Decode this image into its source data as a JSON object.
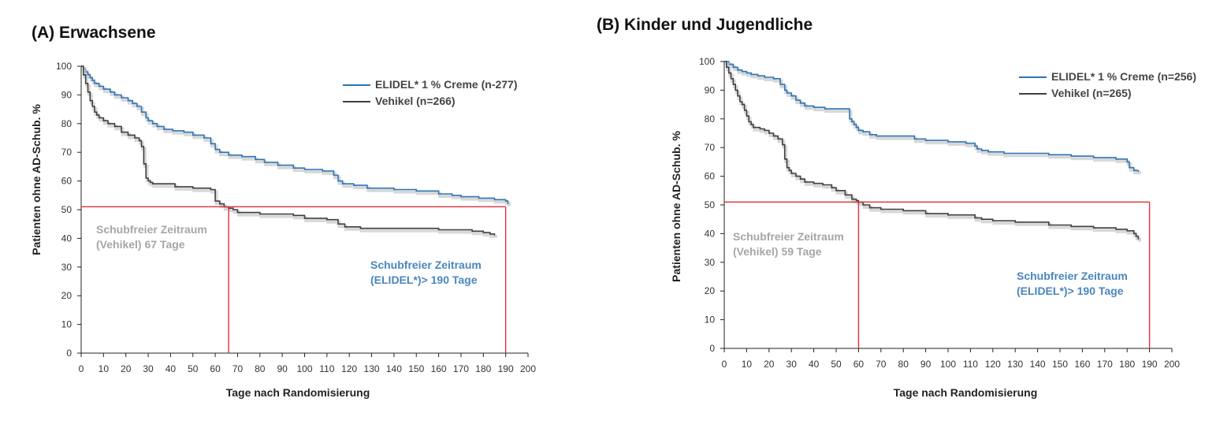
{
  "colors": {
    "elidel": "#2e74b5",
    "vehikel": "#3f3f3f",
    "reference": "#e0303a",
    "vehikel_label": "#a6a6a6",
    "elidel_label": "#4a86bd",
    "axis": "#222222"
  },
  "chart_data": [
    {
      "type": "line",
      "title": "(A) Erwachsene",
      "xlabel": "Tage nach Randomisierung",
      "ylabel": "Patienten ohne AD-Schub. %",
      "xlim": [
        0,
        200
      ],
      "ylim": [
        0,
        100
      ],
      "xticks": [
        "0",
        "10",
        "20",
        "30",
        "40",
        "50",
        "60",
        "70",
        "80",
        "90",
        "100",
        "110",
        "120",
        "130",
        "140",
        "150",
        "160",
        "170",
        "180",
        "190",
        "200"
      ],
      "yticks": [
        "0",
        "10",
        "20",
        "30",
        "40",
        "50",
        "60",
        "70",
        "80",
        "90",
        "100"
      ],
      "grid": false,
      "legend_position": "top-right",
      "series": [
        {
          "name": "ELIDEL* 1 % Creme (n-277)",
          "color_key": "elidel",
          "x": [
            0,
            1,
            2,
            3,
            4,
            5,
            6,
            8,
            10,
            13,
            15,
            18,
            21,
            23,
            25,
            27,
            29,
            30,
            32,
            34,
            37,
            41,
            46,
            50,
            55,
            58,
            60,
            62,
            66,
            72,
            78,
            82,
            88,
            95,
            100,
            108,
            113,
            115,
            117,
            122,
            128,
            140,
            150,
            160,
            166,
            170,
            178,
            185,
            190,
            191
          ],
          "y": [
            100,
            99,
            98,
            97,
            96,
            95,
            94,
            93,
            92,
            91,
            90,
            89,
            88,
            87,
            86,
            84,
            82,
            81,
            80,
            79,
            78,
            77.5,
            77,
            76,
            75,
            73,
            71,
            70,
            69,
            68.5,
            67.5,
            66.5,
            65.5,
            64.5,
            64,
            63.5,
            62,
            60,
            59,
            58.5,
            57.5,
            57,
            56.5,
            55.5,
            55,
            54.5,
            54,
            53.5,
            53,
            52
          ]
        },
        {
          "name": "Vehikel (n=266)",
          "color_key": "vehikel",
          "x": [
            0,
            1,
            2,
            3,
            4,
            5,
            6,
            7,
            8,
            10,
            12,
            15,
            18,
            21,
            24,
            26,
            27,
            28,
            29,
            30,
            31,
            32,
            35,
            42,
            50,
            58,
            60,
            62,
            64,
            66,
            68,
            70,
            80,
            95,
            100,
            110,
            115,
            118,
            125,
            140,
            160,
            175,
            180,
            183,
            185
          ],
          "y": [
            100,
            97,
            94,
            91,
            88,
            86,
            84,
            83,
            82,
            81,
            80,
            79,
            77,
            76,
            75,
            74,
            72,
            66,
            61,
            60,
            59.5,
            59,
            59,
            58,
            57.5,
            57,
            53,
            52,
            51,
            50.5,
            50,
            49,
            48.5,
            48,
            47,
            46.5,
            45,
            44,
            43.5,
            43.5,
            43,
            42.5,
            42,
            41.5,
            41
          ]
        }
      ],
      "reference_lines": {
        "y": 51,
        "x": [
          66,
          190
        ]
      },
      "annotations": [
        {
          "line1": "Schubfreier Zeitraum",
          "line2": "(Vehikel) 67 Tage",
          "color_key": "vehikel_label"
        },
        {
          "line1": "Schubfreier Zeitraum",
          "line2": "(ELIDEL*)> 190 Tage",
          "color_key": "elidel_label"
        }
      ]
    },
    {
      "type": "line",
      "title": "(B) Kinder und Jugendliche",
      "xlabel": "Tage nach Randomisierung",
      "ylabel": "Patienten ohne AD-Schub. %",
      "xlim": [
        0,
        200
      ],
      "ylim": [
        0,
        100
      ],
      "xticks": [
        "0",
        "10",
        "20",
        "30",
        "40",
        "50",
        "60",
        "70",
        "80",
        "90",
        "100",
        "110",
        "120",
        "130",
        "140",
        "150",
        "160",
        "170",
        "180",
        "190",
        "200"
      ],
      "yticks": [
        "0",
        "10",
        "20",
        "30",
        "40",
        "50",
        "60",
        "70",
        "80",
        "90",
        "100"
      ],
      "grid": false,
      "legend_position": "top-right",
      "series": [
        {
          "name": "ELIDEL* 1 % Creme (n=256)",
          "color_key": "elidel",
          "x": [
            0,
            2,
            4,
            6,
            8,
            10,
            12,
            15,
            18,
            22,
            25,
            27,
            28,
            30,
            32,
            34,
            36,
            40,
            45,
            50,
            55,
            56,
            57,
            58,
            59,
            60,
            62,
            65,
            68,
            75,
            85,
            90,
            95,
            100,
            108,
            112,
            113,
            115,
            118,
            125,
            135,
            145,
            155,
            165,
            175,
            180,
            181,
            183,
            185
          ],
          "y": [
            100,
            99,
            98,
            97,
            96.5,
            96,
            95.5,
            95,
            94.5,
            94,
            92,
            90,
            89,
            88,
            86.5,
            85.5,
            84.5,
            84,
            83.5,
            83.5,
            83.5,
            80,
            79,
            78,
            77,
            76,
            75.5,
            74.5,
            74,
            74,
            73,
            72.5,
            72.5,
            72,
            71.5,
            70.5,
            69.5,
            69,
            68.5,
            68,
            68,
            67.5,
            67,
            66.5,
            66,
            65,
            63,
            62,
            61.5
          ]
        },
        {
          "name": "Vehikel (n=265)",
          "color_key": "vehikel",
          "x": [
            0,
            1,
            2,
            3,
            4,
            5,
            6,
            7,
            8,
            9,
            10,
            11,
            12,
            13,
            14,
            16,
            18,
            20,
            22,
            24,
            26,
            27,
            28,
            29,
            30,
            32,
            34,
            36,
            40,
            44,
            48,
            50,
            54,
            57,
            59,
            60,
            62,
            65,
            70,
            80,
            90,
            100,
            110,
            112,
            115,
            120,
            130,
            140,
            145,
            155,
            165,
            175,
            180,
            183,
            184,
            185
          ],
          "y": [
            100,
            98,
            96,
            94,
            92,
            90,
            88,
            86,
            85,
            83,
            81,
            79,
            78,
            77,
            77,
            76.5,
            76,
            75,
            74,
            73,
            71,
            66,
            63,
            62,
            61,
            60,
            59,
            58,
            57.5,
            57,
            56,
            55,
            53.5,
            52,
            51.5,
            51,
            50,
            49,
            48.5,
            48,
            47,
            46.5,
            46.5,
            45.5,
            45,
            44.5,
            44,
            44,
            43,
            42.5,
            42,
            41.5,
            41,
            40,
            39,
            38
          ]
        }
      ],
      "reference_lines": {
        "y": 51,
        "x": [
          60,
          190
        ]
      },
      "annotations": [
        {
          "line1": "Schubfreier Zeitraum",
          "line2": "(Vehikel) 59 Tage",
          "color_key": "vehikel_label"
        },
        {
          "line1": "Schubfreier Zeitraum",
          "line2": "(ELIDEL*)> 190 Tage",
          "color_key": "elidel_label"
        }
      ]
    }
  ]
}
